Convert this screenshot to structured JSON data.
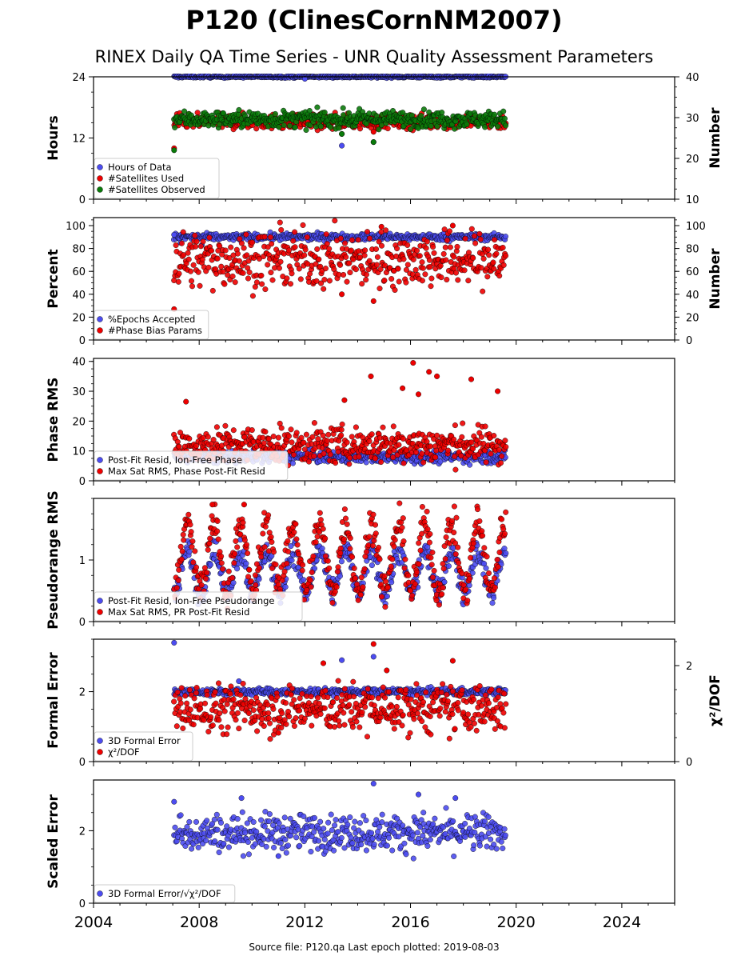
{
  "title": "P120 (ClinesCornNM2007)",
  "subtitle": "RINEX Daily QA Time Series - UNR Quality Assessment Parameters",
  "footer": "Source file: P120.qa Last epoch plotted: 2019-08-03",
  "colors": {
    "blue": "#4c4cf0",
    "red": "#ee0000",
    "green": "#0a7a0a"
  },
  "chart_data": [
    {
      "type": "scatter",
      "panel": "hours",
      "xlim": [
        2004,
        2026
      ],
      "x_ticks": [
        "2004",
        "2008",
        "2012",
        "2016",
        "2020",
        "2024"
      ],
      "ylabel": "Hours",
      "ylim": [
        0,
        24
      ],
      "y_ticks": [
        "0",
        "12",
        "24"
      ],
      "ylabel_right": "Number",
      "ylim_right": [
        10,
        40
      ],
      "y_ticks_right": [
        "10",
        "20",
        "30",
        "40"
      ],
      "legend_position": "lower-left",
      "series": [
        {
          "name": "Hours of Data",
          "color": "blue",
          "axis": "left",
          "x_range": [
            2007.05,
            2019.6
          ],
          "typical": 24,
          "spread": 0.1,
          "outliers": [
            [
              2013.4,
              10.5
            ],
            [
              2014.6,
              11.2
            ],
            [
              2012.0,
              23.6
            ]
          ]
        },
        {
          "name": "#Satellites Used",
          "color": "red",
          "axis": "right",
          "x_range": [
            2007.05,
            2019.6
          ],
          "typical": 29,
          "spread": 0.9,
          "outliers": [
            [
              2007.05,
              22.5
            ],
            [
              2013.4,
              26
            ],
            [
              2014.6,
              26.5
            ],
            [
              2009.4,
              30
            ]
          ]
        },
        {
          "name": "#Satellites Observed",
          "color": "green",
          "axis": "right",
          "x_range": [
            2007.05,
            2019.6
          ],
          "typical": 29.6,
          "spread": 1.0,
          "outliers": [
            [
              2007.05,
              22
            ],
            [
              2013.4,
              26
            ],
            [
              2014.6,
              24
            ]
          ]
        }
      ]
    },
    {
      "type": "scatter",
      "panel": "percent",
      "xlim": [
        2004,
        2026
      ],
      "x_ticks": [
        "2004",
        "2008",
        "2012",
        "2016",
        "2020",
        "2024"
      ],
      "ylabel": "Percent",
      "ylim": [
        0,
        107
      ],
      "y_ticks": [
        "0",
        "20",
        "40",
        "60",
        "80",
        "100"
      ],
      "ylabel_right": "Number",
      "ylim_right": [
        0,
        107
      ],
      "y_ticks_right": [
        "0",
        "20",
        "40",
        "60",
        "80",
        "100"
      ],
      "legend_position": "lower-left",
      "series": [
        {
          "name": "%Epochs Accepted",
          "color": "blue",
          "axis": "left",
          "x_range": [
            2007.05,
            2019.6
          ],
          "typical": 90,
          "spread": 1.5,
          "outliers": [
            [
              2007.05,
              92
            ],
            [
              2007.3,
              85
            ],
            [
              2008.1,
              83
            ]
          ]
        },
        {
          "name": "#Phase Bias Params",
          "color": "red",
          "axis": "right",
          "x_range": [
            2007.05,
            2019.6
          ],
          "typical": 70,
          "spread": 12,
          "outliers": [
            [
              2007.05,
              27
            ],
            [
              2013.4,
              40
            ],
            [
              2014.6,
              34
            ],
            [
              2017.6,
              100
            ],
            [
              2014.9,
              99
            ]
          ]
        }
      ]
    },
    {
      "type": "scatter",
      "panel": "phase_rms",
      "xlim": [
        2004,
        2026
      ],
      "x_ticks": [
        "2004",
        "2008",
        "2012",
        "2016",
        "2020",
        "2024"
      ],
      "ylabel": "Phase RMS",
      "ylim": [
        0,
        41
      ],
      "y_ticks": [
        "0",
        "10",
        "20",
        "30",
        "40"
      ],
      "legend_position": "lower-left",
      "series": [
        {
          "name": "Post-Fit Resid, Ion-Free Phase",
          "color": "blue",
          "axis": "left",
          "x_range": [
            2007.05,
            2019.6
          ],
          "typical": 8,
          "spread": 1.0,
          "outliers": []
        },
        {
          "name": "Max Sat RMS, Phase Post-Fit Resid",
          "color": "red",
          "axis": "left",
          "x_range": [
            2007.05,
            2019.6
          ],
          "typical": 12,
          "spread": 3,
          "outliers": [
            [
              2016.1,
              39.5
            ],
            [
              2016.7,
              36.5
            ],
            [
              2017.0,
              35
            ],
            [
              2014.5,
              35
            ],
            [
              2018.3,
              34
            ],
            [
              2019.3,
              30
            ],
            [
              2015.7,
              31
            ],
            [
              2016.3,
              29
            ],
            [
              2007.5,
              26.5
            ],
            [
              2013.5,
              27
            ]
          ]
        }
      ]
    },
    {
      "type": "scatter",
      "panel": "pseudorange_rms",
      "xlim": [
        2004,
        2026
      ],
      "x_ticks": [
        "2004",
        "2008",
        "2012",
        "2016",
        "2020",
        "2024"
      ],
      "ylabel": "Pseudorange RMS",
      "ylim": [
        0,
        2.0
      ],
      "y_ticks": [
        "0",
        "1"
      ],
      "legend_position": "lower-left",
      "series": [
        {
          "name": "Post-Fit Resid, Ion-Free Pseudorange",
          "color": "blue",
          "axis": "left",
          "x_range": [
            2007.05,
            2019.6
          ],
          "typical": 0.8,
          "seasonal_amplitude": 0.35,
          "spread": 0.1,
          "outliers": [
            [
              2019.5,
              1.4
            ]
          ]
        },
        {
          "name": "Max Sat RMS, PR Post-Fit Resid",
          "color": "red",
          "axis": "left",
          "x_range": [
            2007.05,
            2019.6
          ],
          "typical": 1.05,
          "seasonal_amplitude": 0.55,
          "spread": 0.15,
          "outliers": [
            [
              2008.5,
              1.9
            ],
            [
              2009.7,
              1.9
            ]
          ]
        }
      ]
    },
    {
      "type": "scatter",
      "panel": "formal_error",
      "xlim": [
        2004,
        2026
      ],
      "x_ticks": [
        "2004",
        "2008",
        "2012",
        "2016",
        "2020",
        "2024"
      ],
      "ylabel": "Formal Error",
      "ylim": [
        0,
        3.5
      ],
      "y_ticks": [
        "0",
        "2"
      ],
      "ylabel_right": "χ²/DOF",
      "ylim_right": [
        0,
        2.55
      ],
      "y_ticks_right": [
        "0",
        "2"
      ],
      "legend_position": "lower-left",
      "series": [
        {
          "name": "3D Formal Error",
          "color": "blue",
          "axis": "left",
          "x_range": [
            2007.05,
            2019.6
          ],
          "typical": 2.0,
          "spread": 0.05,
          "outliers": [
            [
              2007.05,
              3.4
            ],
            [
              2014.6,
              3.0
            ],
            [
              2013.4,
              2.9
            ],
            [
              2009.5,
              2.3
            ]
          ]
        },
        {
          "name": "χ²/DOF",
          "color": "red",
          "axis": "right",
          "x_range": [
            2007.05,
            2019.6
          ],
          "typical": 1.1,
          "spread": 0.25,
          "outliers": [
            [
              2014.6,
              2.45
            ],
            [
              2017.6,
              2.1
            ],
            [
              2012.7,
              2.05
            ],
            [
              2015.1,
              1.9
            ],
            [
              2011.0,
              0.6
            ]
          ]
        }
      ]
    },
    {
      "type": "scatter",
      "panel": "scaled_error",
      "xlim": [
        2004,
        2026
      ],
      "x_ticks": [
        "2004",
        "2008",
        "2012",
        "2016",
        "2020",
        "2024"
      ],
      "ylabel": "Scaled Error",
      "ylim": [
        0,
        3.4
      ],
      "y_ticks": [
        "0",
        "2"
      ],
      "legend_position": "lower-left",
      "series": [
        {
          "name": "3D Formal Error/√χ²/DOF",
          "color": "blue",
          "axis": "left",
          "x_range": [
            2007.05,
            2019.6
          ],
          "typical": 1.95,
          "spread": 0.25,
          "outliers": [
            [
              2014.6,
              3.3
            ],
            [
              2016.3,
              3.0
            ],
            [
              2007.05,
              2.8
            ],
            [
              2011.0,
              1.3
            ],
            [
              2009.6,
              2.9
            ],
            [
              2017.7,
              2.9
            ]
          ]
        }
      ]
    }
  ]
}
